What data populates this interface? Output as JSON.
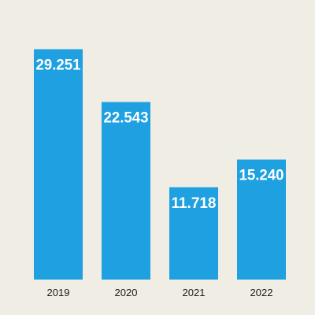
{
  "chart_data": {
    "type": "bar",
    "title": "",
    "xlabel": "",
    "ylabel": "",
    "categories": [
      "2019",
      "2020",
      "2021",
      "2022"
    ],
    "values": [
      29251,
      22543,
      11718,
      15240
    ],
    "value_labels": [
      "29.251",
      "22.543",
      "11.718",
      "15.240"
    ],
    "ylim": [
      0,
      30000
    ],
    "grid": false,
    "legend": "none",
    "colors": {
      "bar": "#1ea0e1",
      "background": "#efede4",
      "tick_text": "#1a1a1a",
      "value_text": "#ffffff"
    }
  }
}
